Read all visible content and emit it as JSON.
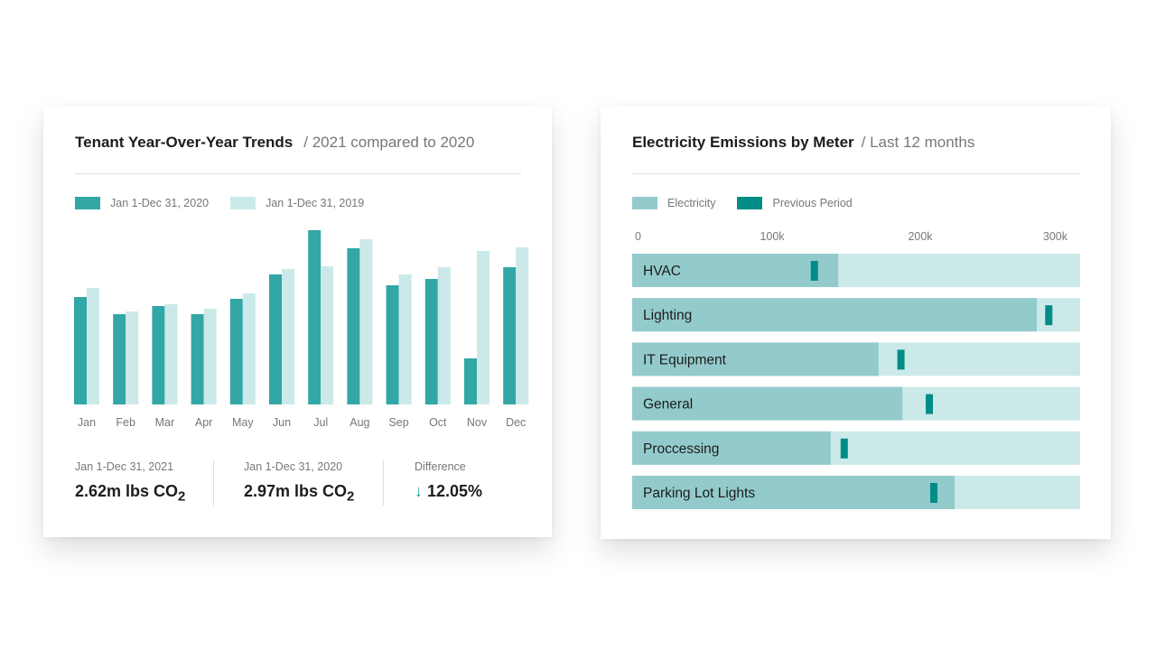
{
  "left": {
    "title": "Tenant Year-Over-Year Trends",
    "subtitle": "/ 2021 compared to 2020",
    "stats": [
      {
        "label": "Jan 1-Dec 31, 2021",
        "value": "2.62m lbs CO",
        "sub": "2"
      },
      {
        "label": "Jan 1-Dec 31, 2020",
        "value": "2.97m lbs CO",
        "sub": "2"
      },
      {
        "label": "Difference",
        "value": "12.05%",
        "icon": "arrow-down-icon"
      }
    ]
  },
  "right": {
    "title": "Electricity Emissions by Meter",
    "subtitle": "/ Last 12 months"
  },
  "chart_data": [
    {
      "type": "bar",
      "categories": [
        "Jan",
        "Feb",
        "Mar",
        "Apr",
        "May",
        "Jun",
        "Jul",
        "Aug",
        "Sep",
        "Oct",
        "Nov",
        "Dec"
      ],
      "series": [
        {
          "name": "Jan 1-Dec 31, 2020",
          "color": "#33a6a6",
          "values": [
            119,
            100,
            109,
            100,
            117,
            144,
            193,
            173,
            132,
            139,
            51,
            152
          ]
        },
        {
          "name": "Jan 1-Dec 31, 2019",
          "color": "#cce9e9",
          "values": [
            129,
            103,
            111,
            106,
            123,
            150,
            153,
            183,
            144,
            152,
            170,
            174
          ]
        }
      ],
      "ylim": [
        0,
        200
      ],
      "grid": false,
      "legend": "top-left"
    },
    {
      "type": "bar",
      "orientation": "horizontal",
      "categories": [
        "HVAC",
        "Lighting",
        "IT Equipment",
        "General",
        "Proccessing",
        "Parking Lot Lights"
      ],
      "xticks": [
        "0",
        "100k",
        "200k",
        "300k"
      ],
      "xlim": [
        0,
        300000
      ],
      "track_color": "#cce9e9",
      "series": [
        {
          "name": "Electricity",
          "color": "#93cbcc",
          "values": [
            138000,
            271000,
            165000,
            181000,
            133000,
            216000
          ]
        },
        {
          "name": "Previous Period",
          "color": "#008c87",
          "values": [
            122000,
            279000,
            180000,
            199000,
            142000,
            202000
          ]
        }
      ],
      "legend": "top-left"
    }
  ]
}
